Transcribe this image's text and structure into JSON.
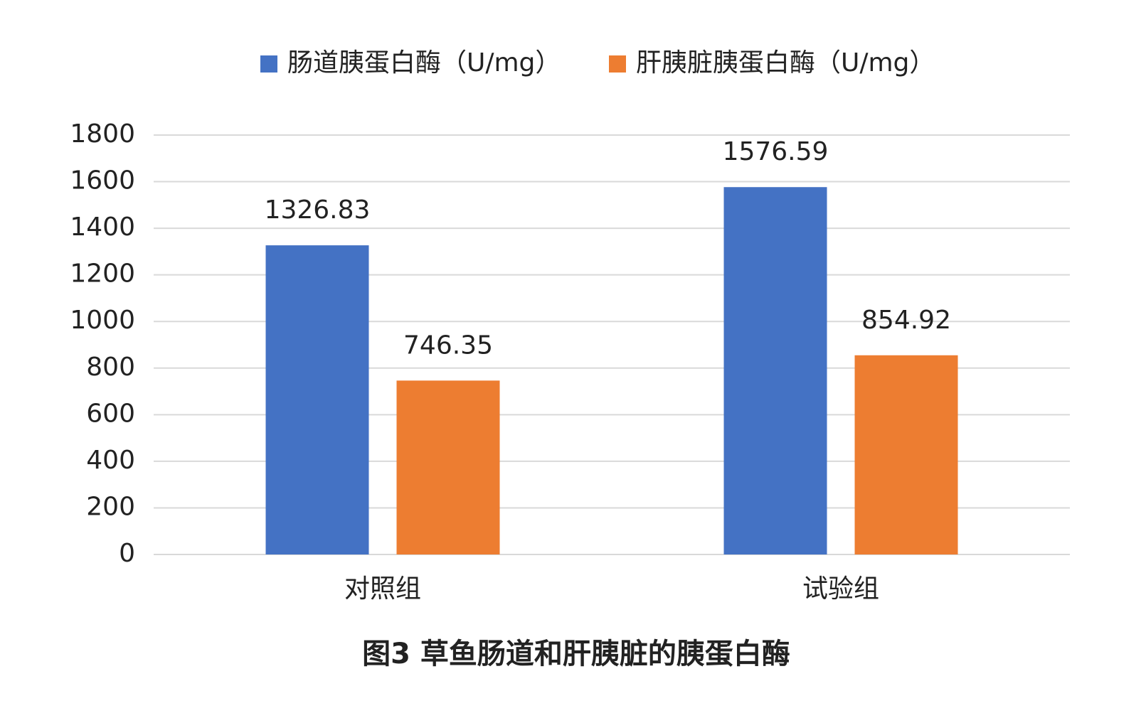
{
  "chart_data": {
    "type": "bar",
    "title": "图3 草鱼肠道和肝胰脏的胰蛋白酶",
    "categories": [
      "对照组",
      "试验组"
    ],
    "series": [
      {
        "name": "肠道胰蛋白酶（U/mg）",
        "values": [
          1326.83,
          1576.59
        ],
        "labels": [
          "1326.83",
          "1576.59"
        ],
        "color": "#4472C4"
      },
      {
        "name": "肝胰脏胰蛋白酶（U/mg）",
        "values": [
          746.35,
          854.92
        ],
        "labels": [
          "746.35",
          "854.92"
        ],
        "color": "#ED7D31"
      }
    ],
    "y_ticks": [
      "0",
      "200",
      "400",
      "600",
      "800",
      "1000",
      "1200",
      "1400",
      "1600",
      "1800"
    ],
    "ylim": [
      0,
      1800
    ],
    "grid": true,
    "grid_color": "#D9D9D9",
    "legend_position": "top",
    "xlabel": "",
    "ylabel": ""
  }
}
